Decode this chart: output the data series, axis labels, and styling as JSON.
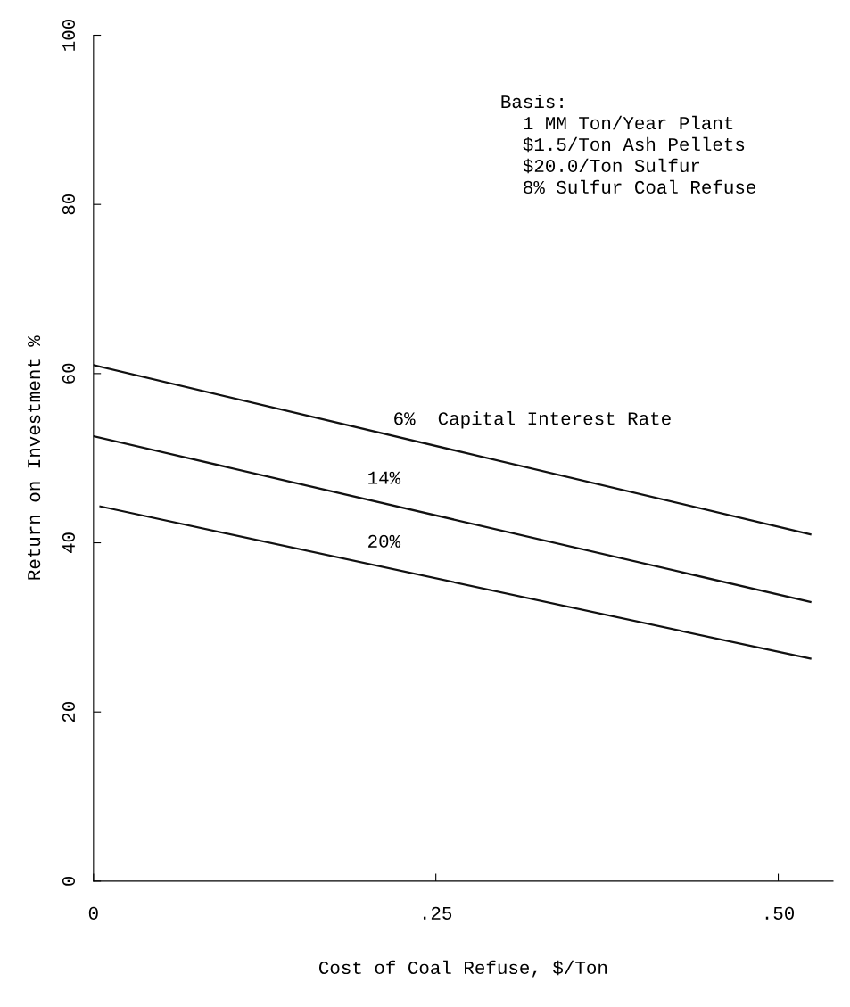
{
  "chart_data": {
    "type": "line",
    "xlabel": "Cost of Coal Refuse, $/Ton",
    "ylabel": "Return on Investment %",
    "xlim": [
      0,
      0.54
    ],
    "ylim": [
      0,
      100
    ],
    "xticks": [
      0,
      {
        "value": 0.25,
        "label": ".25"
      },
      {
        "value": 0.5,
        "label": ".50"
      }
    ],
    "yticks": [
      0,
      20,
      40,
      60,
      80,
      100
    ],
    "series": [
      {
        "color": "#111111",
        "x": [
          0,
          0.5235
        ],
        "values": [
          61,
          41
        ]
      },
      {
        "color": "#111111",
        "x": [
          0,
          0.5235
        ],
        "values": [
          52.6,
          33
        ]
      },
      {
        "color": "#111111",
        "x": [
          0.005,
          0.5235
        ],
        "values": [
          44.3,
          26.3
        ]
      }
    ],
    "annotations": [
      "6%  Capital Interest Rate",
      "14%",
      "20%",
      "Basis:\n  1 MM Ton/Year Plant\n  $1.5/Ton Ash Pellets\n  $20.0/Ton Sulfur\n  8% Sulfur Coal Refuse"
    ],
    "grid": false,
    "marker": "none",
    "line_style": "solid"
  }
}
